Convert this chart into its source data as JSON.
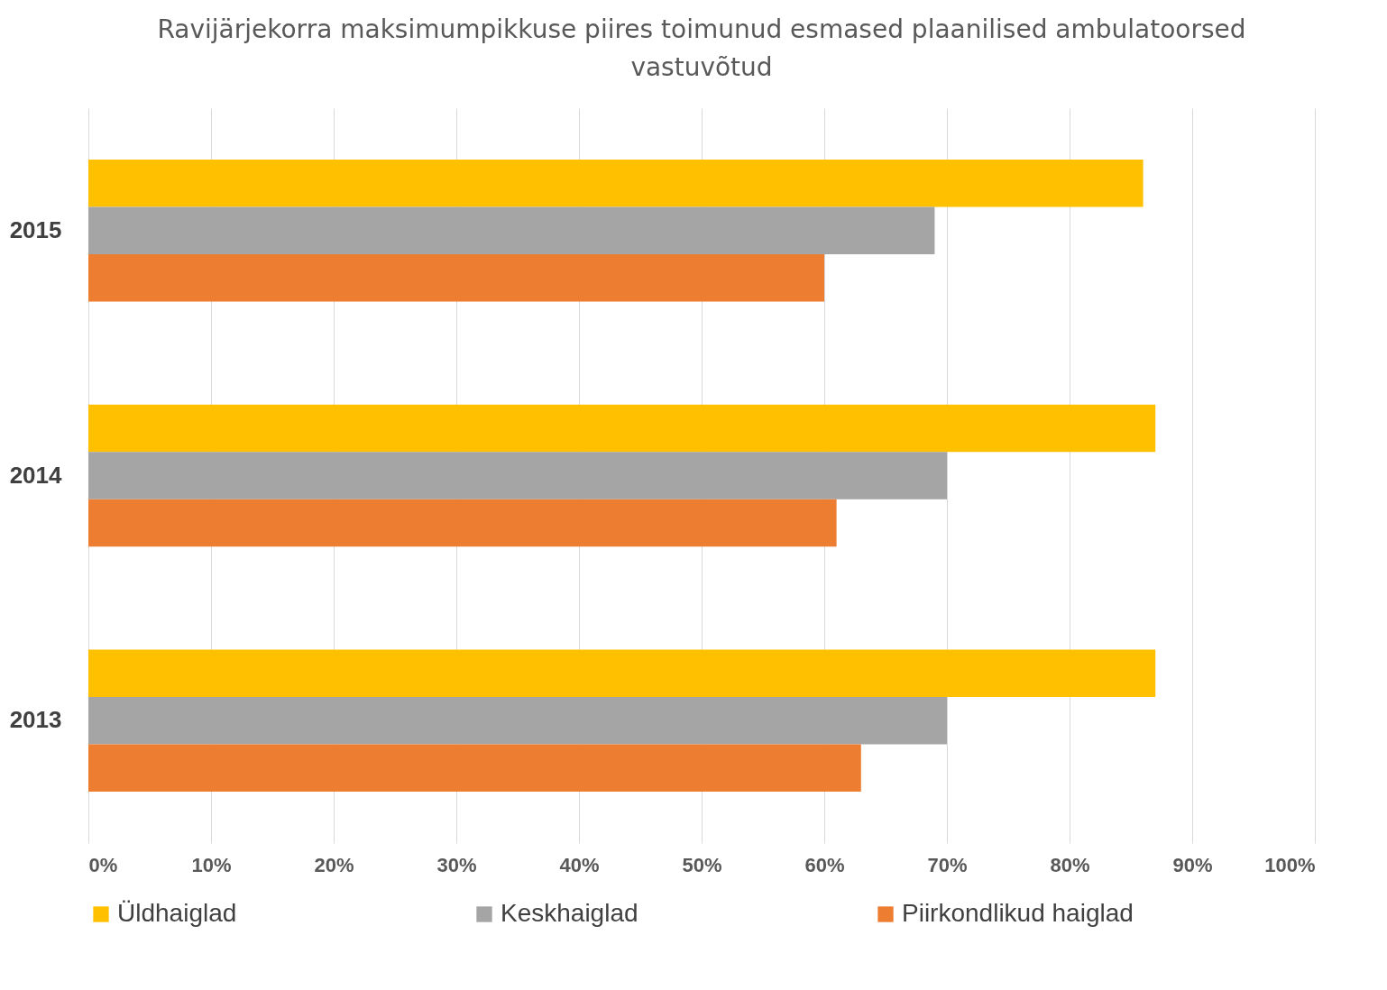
{
  "chart_data": {
    "type": "bar",
    "orientation": "horizontal",
    "title": "Ravijärjekorra maksimumpikkuse piires toimunud esmased plaanilised ambulatoorsed vastuvõtud",
    "categories": [
      "2015",
      "2014",
      "2013"
    ],
    "series": [
      {
        "name": "Üldhaiglad",
        "color": "#ffc000",
        "values": [
          86,
          87,
          87
        ]
      },
      {
        "name": "Keskhaiglad",
        "color": "#a5a5a5",
        "values": [
          69,
          70,
          70
        ]
      },
      {
        "name": "Piirkondlikud haiglad",
        "color": "#ed7d31",
        "values": [
          60,
          61,
          63
        ]
      }
    ],
    "xlim": [
      0,
      100
    ],
    "xticks": [
      {
        "value": 0,
        "label": "0%"
      },
      {
        "value": 10,
        "label": "10%"
      },
      {
        "value": 20,
        "label": "20%"
      },
      {
        "value": 30,
        "label": "30%"
      },
      {
        "value": 40,
        "label": "40%"
      },
      {
        "value": 50,
        "label": "50%"
      },
      {
        "value": 60,
        "label": "60%"
      },
      {
        "value": 70,
        "label": "70%"
      },
      {
        "value": 80,
        "label": "80%"
      },
      {
        "value": 90,
        "label": "90%"
      },
      {
        "value": 100,
        "label": "100%"
      }
    ],
    "grid": "x",
    "legend": "bottom"
  }
}
